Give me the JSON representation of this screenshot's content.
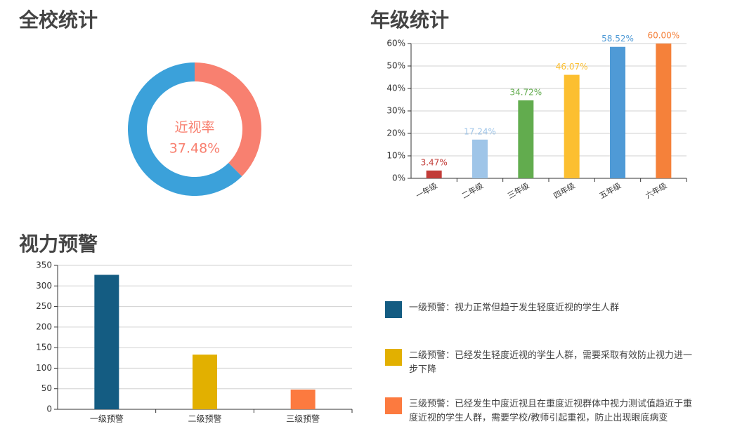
{
  "chart_data": [
    {
      "type": "donut",
      "title": "全校统计",
      "center_label": "近视率",
      "values": [
        37.48,
        62.52
      ],
      "value_labels": [
        "37.48%",
        null
      ],
      "colors": [
        "#f88070",
        "#3ba1da"
      ]
    },
    {
      "type": "bar",
      "title": "年级统计",
      "categories": [
        "一年级",
        "二年级",
        "三年级",
        "四年级",
        "五年级",
        "六年级"
      ],
      "values": [
        3.47,
        17.24,
        34.72,
        46.07,
        58.52,
        60.0
      ],
      "value_labels": [
        "3.47%",
        "17.24%",
        "34.72%",
        "46.07%",
        "58.52%",
        "60.00%"
      ],
      "colors": [
        "#c23c38",
        "#9fc5e8",
        "#62ac4e",
        "#fcbf30",
        "#4f9ad6",
        "#f5813a"
      ],
      "ylim": [
        0,
        60
      ],
      "yticks": [
        {
          "value": 0,
          "label": "0%"
        },
        {
          "value": 10,
          "label": "10%"
        },
        {
          "value": 20,
          "label": "20%"
        },
        {
          "value": 30,
          "label": "30%"
        },
        {
          "value": 40,
          "label": "40%"
        },
        {
          "value": 50,
          "label": "50%"
        },
        {
          "value": 60,
          "label": "60%"
        }
      ],
      "grid": true
    },
    {
      "type": "bar",
      "title": "视力预警",
      "categories": [
        "一级预警",
        "二级预警",
        "三级预警"
      ],
      "values": [
        327,
        133,
        48
      ],
      "colors": [
        "#145c82",
        "#e2b000",
        "#fc7a3f"
      ],
      "ylim": [
        0,
        350
      ],
      "yticks": [
        0,
        50,
        100,
        150,
        200,
        250,
        300,
        350
      ],
      "grid": true,
      "legend": [
        {
          "color": "#145c82",
          "label": "一级预警：视力正常但趋于发生轻度近视的学生人群"
        },
        {
          "color": "#e2b000",
          "label": "二级预警：已经发生轻度近视的学生人群，需要采取有效防止视力进一步下降"
        },
        {
          "color": "#fc7a3f",
          "label": "三级预警：已经发生中度近视且在重度近视群体中视力测试值趋近于重度近视的学生人群，需要学校/教师引起重视，防止出现眼底病变"
        }
      ]
    }
  ]
}
